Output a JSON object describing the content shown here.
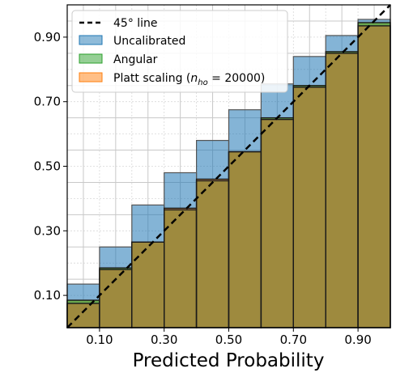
{
  "chart_data": {
    "type": "bar",
    "xlabel": "Predicted Probability",
    "ylabel": "",
    "xlim": [
      0.0,
      1.0
    ],
    "ylim": [
      0.0,
      1.0
    ],
    "grid": true,
    "legend_position": "top-left",
    "bins": [
      [
        0.0,
        0.1
      ],
      [
        0.1,
        0.2
      ],
      [
        0.2,
        0.3
      ],
      [
        0.3,
        0.4
      ],
      [
        0.4,
        0.5
      ],
      [
        0.5,
        0.6
      ],
      [
        0.6,
        0.7
      ],
      [
        0.7,
        0.8
      ],
      [
        0.8,
        0.9
      ],
      [
        0.9,
        1.0
      ]
    ],
    "x_ticks": [
      "0.10",
      "0.30",
      "0.50",
      "0.70",
      "0.90"
    ],
    "x_tick_values": [
      0.1,
      0.3,
      0.5,
      0.7,
      0.9
    ],
    "y_ticks": [
      "0.10",
      "0.30",
      "0.50",
      "0.70",
      "0.90"
    ],
    "y_tick_values": [
      0.1,
      0.3,
      0.5,
      0.7,
      0.9
    ],
    "reference_line": {
      "label": "45° line",
      "color": "#000000"
    },
    "series": [
      {
        "name": "Uncalibrated",
        "color": "#1f77b4",
        "values": [
          0.135,
          0.25,
          0.38,
          0.48,
          0.58,
          0.675,
          0.755,
          0.84,
          0.905,
          0.955
        ]
      },
      {
        "name": "Angular",
        "color": "#2ca02c",
        "values": [
          0.085,
          0.185,
          0.265,
          0.365,
          0.455,
          0.545,
          0.65,
          0.75,
          0.855,
          0.945
        ]
      },
      {
        "name": "Platt scaling",
        "name_sub": "ho",
        "name_value": "20000",
        "color": "#ff7f0e",
        "values": [
          0.075,
          0.18,
          0.265,
          0.37,
          0.46,
          0.545,
          0.645,
          0.745,
          0.85,
          0.935
        ]
      }
    ],
    "overlap_color": "#9e8a3e"
  },
  "legend": {
    "line_label": "45° line",
    "uncal_label": "Uncalibrated",
    "angular_label": "Angular",
    "platt_prefix": "Platt scaling (",
    "platt_n": "n",
    "platt_sub": "ho",
    "platt_suffix": " = 20000)"
  }
}
